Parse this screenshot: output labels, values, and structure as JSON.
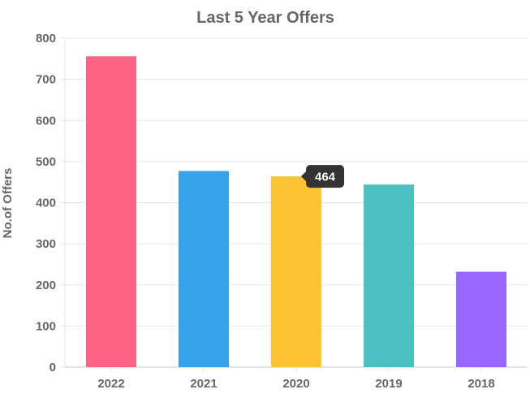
{
  "chart_data": {
    "type": "bar",
    "title": "Last 5 Year Offers",
    "ylabel": "No.of Offers",
    "xlabel": "",
    "categories": [
      "2022",
      "2021",
      "2020",
      "2019",
      "2018"
    ],
    "values": [
      756,
      477,
      464,
      444,
      232
    ],
    "colors": [
      "#ff6384",
      "#36a2eb",
      "#ffc233",
      "#4bc0c0",
      "#9966ff"
    ],
    "ylim": [
      0,
      800
    ],
    "yticks": [
      0,
      100,
      200,
      300,
      400,
      500,
      600,
      700,
      800
    ],
    "grid": true,
    "legend": "none",
    "tooltip": {
      "category": "2020",
      "label": "464",
      "color": "#333333"
    }
  }
}
